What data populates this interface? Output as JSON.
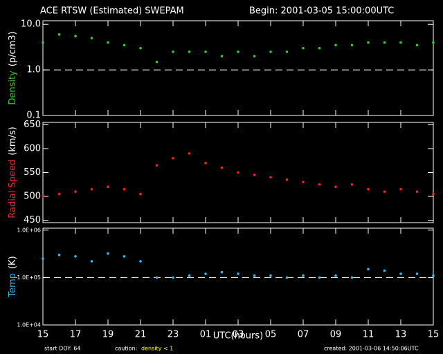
{
  "header": {
    "title": "ACE RTSW (Estimated) SWEPAM",
    "begin": "Begin: 2001-03-05 15:00:00UTC"
  },
  "footer": {
    "start": "start DOY:  64",
    "caution": "caution:",
    "caution_value": "density < 1",
    "created": "created: 2001-03-06 14:50:06UTC"
  },
  "chart_data": [
    {
      "type": "scatter",
      "y_label": "Density",
      "y_unit": "(p/cm3)",
      "color": "#33cc33",
      "log": true,
      "ref_line": 1,
      "x": [
        0,
        1,
        2,
        3,
        4,
        5,
        6,
        7,
        8,
        9,
        10,
        11,
        12,
        13,
        14,
        15,
        16,
        17,
        18,
        19,
        20,
        21,
        22,
        23,
        24
      ],
      "values": [
        4,
        6,
        5.5,
        5,
        4,
        3.5,
        3,
        1.5,
        2.5,
        2.5,
        2.5,
        2,
        2.5,
        2,
        2.5,
        2.5,
        3,
        3,
        3.5,
        3.5,
        4,
        4,
        4,
        3.5,
        4
      ],
      "ylim": [
        0.1,
        12
      ],
      "yticks": [
        {
          "value": 10,
          "label": "10.0"
        },
        {
          "value": 1,
          "label": "1.0"
        },
        0.1
      ]
    },
    {
      "type": "scatter",
      "y_label": "Radial Speed",
      "y_unit": "(km/s)",
      "color": "#ff2020",
      "log": false,
      "x": [
        0,
        1,
        2,
        3,
        4,
        5,
        6,
        7,
        8,
        9,
        10,
        11,
        12,
        13,
        14,
        15,
        16,
        17,
        18,
        19,
        20,
        21,
        22,
        23,
        24
      ],
      "values": [
        500,
        505,
        510,
        515,
        520,
        515,
        505,
        565,
        580,
        590,
        570,
        560,
        550,
        545,
        540,
        535,
        530,
        525,
        520,
        525,
        515,
        510,
        515,
        510,
        505
      ],
      "ylim": [
        445,
        655
      ],
      "yticks": [
        450,
        500,
        550,
        600,
        650
      ]
    },
    {
      "type": "scatter",
      "y_label": "Temp",
      "y_unit": "(K)",
      "color": "#33bbee",
      "log": true,
      "ref_line": 100000,
      "x": [
        0,
        1,
        2,
        3,
        4,
        5,
        6,
        7,
        8,
        9,
        10,
        11,
        12,
        13,
        14,
        15,
        16,
        17,
        18,
        19,
        20,
        21,
        22,
        23,
        24
      ],
      "values": [
        250000,
        300000,
        280000,
        220000,
        320000,
        280000,
        220000,
        100000,
        100000,
        110000,
        120000,
        130000,
        120000,
        110000,
        110000,
        100000,
        110000,
        100000,
        110000,
        100000,
        150000,
        140000,
        120000,
        120000,
        110000
      ],
      "ylim": [
        10000,
        1100000
      ],
      "yticks": [
        {
          "value": 1000000,
          "label": "1.0E+06"
        },
        {
          "value": 100000,
          "label": "1.0E+05"
        },
        {
          "value": 10000,
          "label": "1.0E+04"
        }
      ],
      "x_label": "UTC(hours)",
      "xlim": [
        0,
        24
      ],
      "xticks": [
        {
          "value": 0,
          "label": "15"
        },
        {
          "value": 2,
          "label": "17"
        },
        {
          "value": 4,
          "label": "19"
        },
        {
          "value": 6,
          "label": "21"
        },
        {
          "value": 8,
          "label": "23"
        },
        {
          "value": 10,
          "label": "01"
        },
        {
          "value": 12,
          "label": "03"
        },
        {
          "value": 14,
          "label": "05"
        },
        {
          "value": 16,
          "label": "07"
        },
        {
          "value": 18,
          "label": "09"
        },
        {
          "value": 20,
          "label": "11"
        },
        {
          "value": 22,
          "label": "13"
        },
        {
          "value": 24,
          "label": "15"
        }
      ]
    }
  ]
}
